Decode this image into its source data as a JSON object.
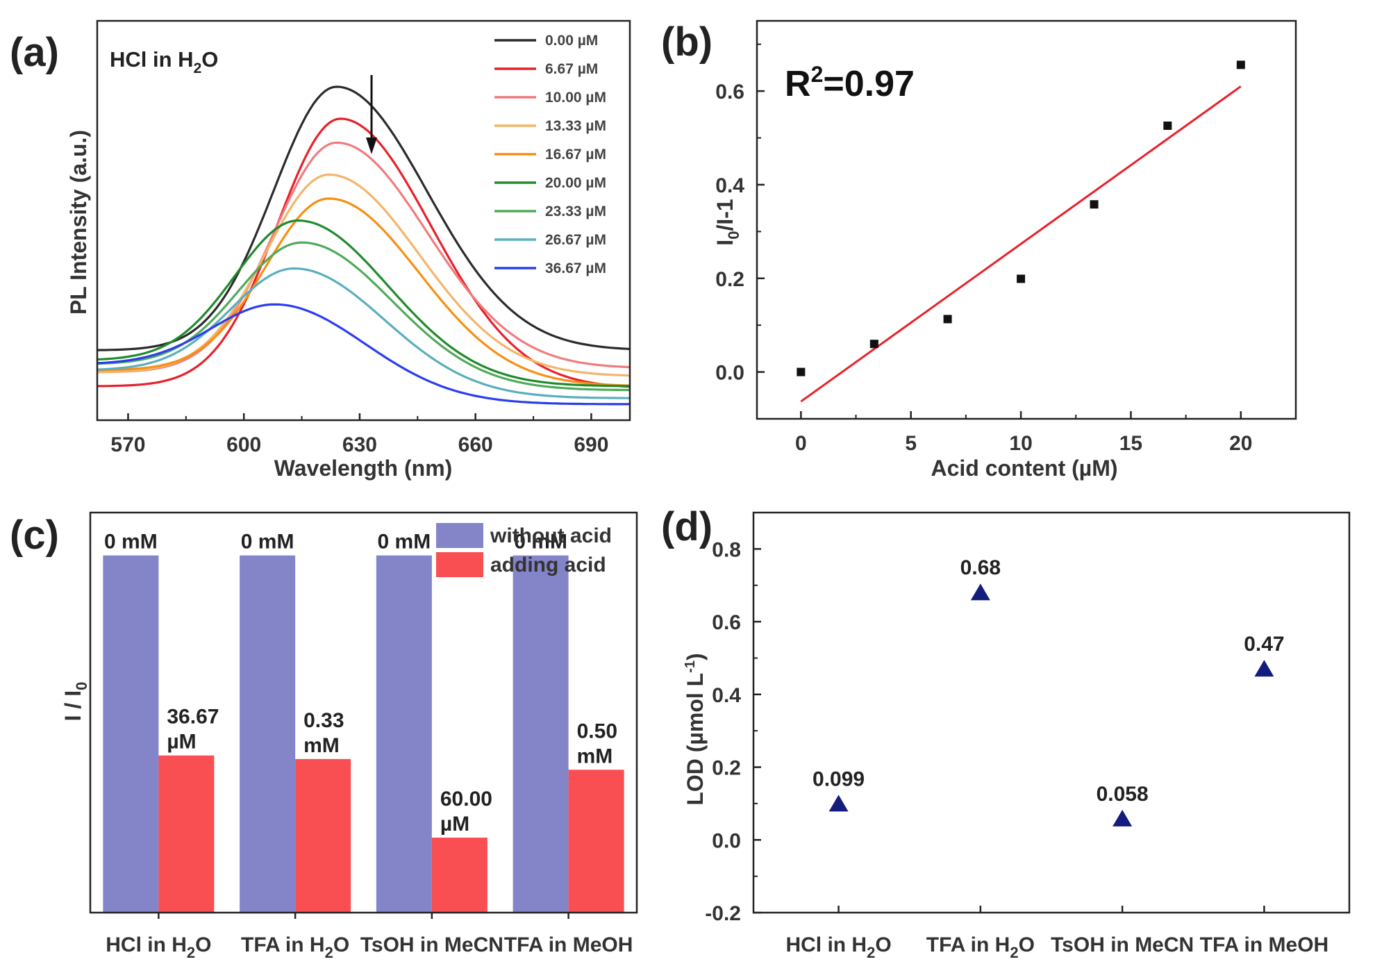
{
  "chart_data": [
    {
      "id": "a",
      "panel_label": "(a)",
      "type": "line",
      "annotation_prefix": "HCl in H",
      "annotation_sub": "2",
      "annotation_suffix": "O",
      "xlabel": "Wavelength (nm)",
      "ylabel": "PL Intensity (a.u.)",
      "xlim": [
        562,
        700
      ],
      "ylim": [
        0,
        1
      ],
      "xticks": [
        570,
        600,
        630,
        660,
        690
      ],
      "series": [
        {
          "name": "0.00 µM",
          "color": "#2b2b2b",
          "peak_nm": 624,
          "peak": 0.835,
          "start": 0.175,
          "end": 0.175
        },
        {
          "name": "6.67 µM",
          "color": "#e8202a",
          "peak_nm": 625,
          "peak": 0.755,
          "start": 0.085,
          "end": 0.08
        },
        {
          "name": "10.00 µM",
          "color": "#f07c7c",
          "peak_nm": 624,
          "peak": 0.695,
          "start": 0.12,
          "end": 0.13
        },
        {
          "name": "13.33 µM",
          "color": "#f3b56a",
          "peak_nm": 622,
          "peak": 0.615,
          "start": 0.12,
          "end": 0.11
        },
        {
          "name": "16.67 µM",
          "color": "#f78f13",
          "peak_nm": 622,
          "peak": 0.555,
          "start": 0.125,
          "end": 0.085
        },
        {
          "name": "20.00 µM",
          "color": "#1f8b2b",
          "peak_nm": 614,
          "peak": 0.5,
          "start": 0.15,
          "end": 0.085
        },
        {
          "name": "23.33 µM",
          "color": "#4faa5a",
          "peak_nm": 615,
          "peak": 0.445,
          "start": 0.14,
          "end": 0.075
        },
        {
          "name": "26.67 µM",
          "color": "#5aaebd",
          "peak_nm": 613,
          "peak": 0.38,
          "start": 0.125,
          "end": 0.055
        },
        {
          "name": "36.67 µM",
          "color": "#2a3df0",
          "peak_nm": 608,
          "peak": 0.29,
          "start": 0.14,
          "end": 0.04
        }
      ]
    },
    {
      "id": "b",
      "panel_label": "(b)",
      "type": "scatter",
      "annotation_prefix": "R",
      "annotation_sup": "2",
      "annotation_suffix": "=0.97",
      "xlabel": "Acid content (µM)",
      "ylabel": "I0/I-1",
      "ylabel_main": "I",
      "ylabel_sub": "0",
      "ylabel_rest": "/I-1",
      "xlim": [
        -2,
        22.5
      ],
      "ylim": [
        -0.1,
        0.75
      ],
      "xticks": [
        0,
        5,
        10,
        15,
        20
      ],
      "yticks": [
        "0.0",
        "0.2",
        "0.4",
        "0.6"
      ],
      "x": [
        0,
        3.33,
        6.67,
        10.0,
        13.33,
        16.67,
        20.0
      ],
      "y": [
        0.0,
        0.06,
        0.113,
        0.199,
        0.358,
        0.526,
        0.656
      ],
      "fit": {
        "x": [
          0,
          20
        ],
        "y": [
          -0.063,
          0.61
        ],
        "color": "#e8202a"
      }
    },
    {
      "id": "c",
      "panel_label": "(c)",
      "type": "bar",
      "ylabel": "I / I0",
      "ylabel_main": "I / I",
      "ylabel_sub": "0",
      "categories": [
        {
          "main": "HCl in H",
          "sub": "2",
          "rest": "O"
        },
        {
          "main": "TFA in H",
          "sub": "2",
          "rest": "O"
        },
        {
          "main": "TsOH in MeCN",
          "sub": "",
          "rest": ""
        },
        {
          "main": "TFA in MeOH",
          "sub": "",
          "rest": ""
        }
      ],
      "ylim": [
        0,
        1.12
      ],
      "series": [
        {
          "name": "without acid",
          "color": "#8484c9",
          "values": [
            1.0,
            1.0,
            1.0,
            1.0
          ],
          "labels": [
            [
              "0 mM"
            ],
            [
              "0 mM"
            ],
            [
              "0 mM"
            ],
            [
              "0 mM"
            ]
          ]
        },
        {
          "name": "adding acid",
          "color": "#f94e52",
          "values": [
            0.44,
            0.43,
            0.21,
            0.4
          ],
          "labels": [
            [
              "36.67",
              "µM"
            ],
            [
              "0.33",
              "mM"
            ],
            [
              "60.00",
              "µM"
            ],
            [
              "0.50",
              "mM"
            ]
          ]
        }
      ]
    },
    {
      "id": "d",
      "panel_label": "(d)",
      "type": "scatter",
      "ylabel": "LOD (µmol L-1)",
      "ylabel_main": "LOD (µmol L",
      "ylabel_sup": "-1",
      "ylabel_rest": ")",
      "categories": [
        {
          "main": "HCl in H",
          "sub": "2",
          "rest": "O"
        },
        {
          "main": "TFA in H",
          "sub": "2",
          "rest": "O"
        },
        {
          "main": "TsOH in MeCN",
          "sub": "",
          "rest": ""
        },
        {
          "main": "TFA in MeOH",
          "sub": "",
          "rest": ""
        }
      ],
      "ylim": [
        -0.2,
        0.9
      ],
      "yticks": [
        "-0.2",
        "0.0",
        "0.2",
        "0.4",
        "0.6",
        "0.8"
      ],
      "values": [
        0.099,
        0.68,
        0.058,
        0.47
      ],
      "labels": [
        "0.099",
        "0.68",
        "0.058",
        "0.47"
      ],
      "marker_color": "#141c7e"
    }
  ]
}
